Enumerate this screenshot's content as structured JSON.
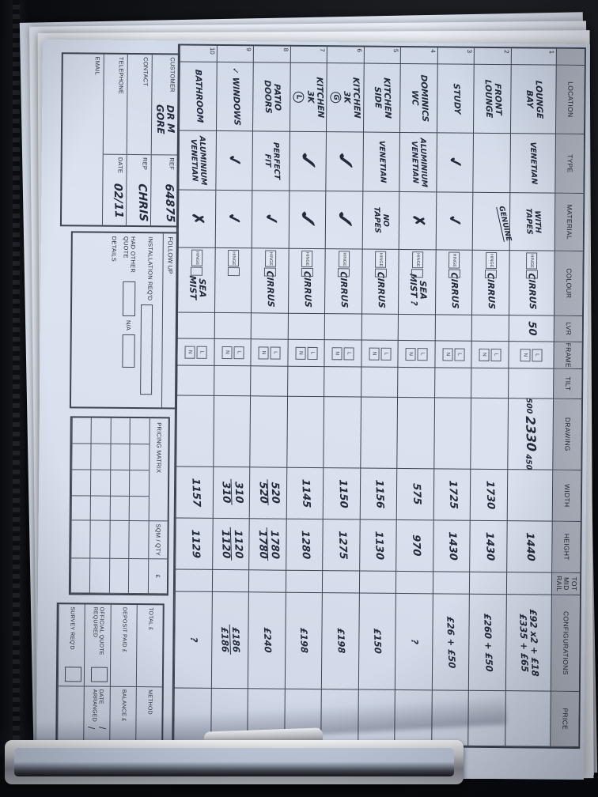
{
  "form": {
    "table": {
      "headers": [
        "LOCATION",
        "TYPE",
        "MATERIAL",
        "COLOUR",
        "LVR",
        "FRAME",
        "TILT",
        "DRAWING",
        "WIDTH",
        "HEIGHT",
        "TOT\nMID RAIL",
        "CONFIGURATIONS",
        "PRICE"
      ],
      "hinge_label": "HINGE",
      "frame_options": [
        "L",
        "N"
      ],
      "rows": [
        {
          "num": "1",
          "location": "LOUNGE\nBAY",
          "loc_prefix": "",
          "loc_circle": "",
          "type": "VENETIAN",
          "material": "WITH\nTAPES",
          "material_note": "GENUINE",
          "colour": "CIRRUS",
          "lvr": "50",
          "tilt": "",
          "drawing": [
            "500",
            "2330",
            "450"
          ],
          "width": [],
          "height": [
            "1440"
          ],
          "tot": "",
          "config": [
            "£92 x2 + £18",
            "£335 + £65"
          ],
          "price": ""
        },
        {
          "num": "2",
          "location": "FRONT\nLOUNGE",
          "loc_prefix": "",
          "loc_circle": "",
          "type": "",
          "material": "",
          "material_note": "",
          "colour": "CIRRUS",
          "lvr": "",
          "tilt": "",
          "drawing": [],
          "width": [
            "1730"
          ],
          "height": [
            "1430"
          ],
          "tot": "",
          "config": [
            "£260 + £50"
          ],
          "price": ""
        },
        {
          "num": "3",
          "location": "STUDY",
          "loc_prefix": "",
          "loc_circle": "",
          "type": "✓",
          "material": "✓",
          "material_note": "",
          "colour": "CIRRUS",
          "lvr": "",
          "tilt": "",
          "drawing": [],
          "width": [
            "1725"
          ],
          "height": [
            "1430"
          ],
          "tot": "",
          "config": [
            "£26 + £50"
          ],
          "price": ""
        },
        {
          "num": "4",
          "location": "DOMINICS\nWC",
          "loc_prefix": "",
          "loc_circle": "",
          "type": "ALUMINIUM\nVENETIAN",
          "material": "✗",
          "material_note": "",
          "colour": "SEA\nMIST ?",
          "lvr": "",
          "tilt": "",
          "drawing": [],
          "width": [
            "575"
          ],
          "height": [
            "970"
          ],
          "tot": "",
          "config": [
            "?"
          ],
          "price": ""
        },
        {
          "num": "5",
          "location": "KITCHEN\nSIDE",
          "loc_prefix": "",
          "loc_circle": "",
          "type": "VENETIAN",
          "material": "NO\nTAPES",
          "material_note": "",
          "colour": "CIRRUS",
          "lvr": "",
          "tilt": "",
          "drawing": [],
          "width": [
            "1156"
          ],
          "height": [
            "1130"
          ],
          "tot": "",
          "config": [
            "£150"
          ],
          "price": ""
        },
        {
          "num": "6",
          "location": "KITCHEN\n3K",
          "loc_prefix": "",
          "loc_circle": "G",
          "type": "✓",
          "material": "✓",
          "material_note": "",
          "colour": "CIRRUS",
          "lvr": "",
          "tilt": "",
          "drawing": [],
          "width": [
            "1150"
          ],
          "height": [
            "1275"
          ],
          "tot": "",
          "config": [
            "£198"
          ],
          "price": ""
        },
        {
          "num": "7",
          "location": "KITCHEN\n3K",
          "loc_prefix": "",
          "loc_circle": "L",
          "type": "✓",
          "material": "✓",
          "material_note": "",
          "colour": "CIRRUS",
          "lvr": "",
          "tilt": "",
          "drawing": [],
          "width": [
            "1145"
          ],
          "height": [
            "1280"
          ],
          "tot": "",
          "config": [
            "£198"
          ],
          "price": ""
        },
        {
          "num": "8",
          "location": "PATIO\nDOORS",
          "loc_prefix": "",
          "loc_circle": "",
          "type": "PERFECT\nFIT",
          "material": "✓",
          "material_note": "",
          "colour": "CIRRUS",
          "lvr": "",
          "tilt": "",
          "drawing": [],
          "width": [
            "520",
            "520"
          ],
          "height": [
            "1780",
            "1780"
          ],
          "tot": "",
          "config": [
            "£240"
          ],
          "price": ""
        },
        {
          "num": "9",
          "location": "WINDOWS",
          "loc_prefix": "✓",
          "loc_circle": "",
          "type": "✓",
          "material": "✓",
          "material_note": "",
          "colour": "",
          "lvr": "",
          "tilt": "",
          "drawing": [],
          "width": [
            "310",
            "310"
          ],
          "height": [
            "1120",
            "1120"
          ],
          "tot": "",
          "config": [
            "£186",
            "£186"
          ],
          "price": ""
        },
        {
          "num": "10",
          "location": "BATHROOM",
          "loc_prefix": "",
          "loc_circle": "",
          "type": "ALUMINIUM\nVENETIAN",
          "material": "✗",
          "material_note": "",
          "colour": "SEA\nMIST",
          "lvr": "",
          "tilt": "",
          "drawing": [],
          "width": [
            "1157"
          ],
          "height": [
            "1129"
          ],
          "tot": "",
          "config": [
            "?"
          ],
          "price": ""
        }
      ]
    },
    "footer": {
      "customer": {
        "rows": [
          {
            "label": "CUSTOMER",
            "value": "DR M GORE",
            "label2": "REF",
            "value2": "64875"
          },
          {
            "label": "CONTACT",
            "value": "",
            "label2": "REP",
            "value2": "CHRIS"
          },
          {
            "label": "TELEPHONE",
            "value": "",
            "label2": "DATE",
            "value2": "02/11"
          },
          {
            "label": "EMAIL",
            "value": "",
            "label2": "",
            "value2": ""
          }
        ]
      },
      "follow_up": {
        "title": "FOLLOW UP",
        "installation_label": "INSTALLATION REQ'D",
        "quote_label": "HAD OTHER QUOTE",
        "na_label": "N/A",
        "details_label": "DETAILS"
      },
      "pricing_matrix": {
        "title": "PRICING MATRIX",
        "qty_label": "SQM / QTY",
        "currency_label": "£"
      },
      "totals": {
        "rows": [
          {
            "left": "TOTAL £",
            "left_checkbox": false,
            "right": "METHOD",
            "right_extra": ""
          },
          {
            "left": "DEPOSIT PAID £",
            "left_checkbox": false,
            "right": "BALANCE £",
            "right_extra": ""
          },
          {
            "left": "OFFICIAL QUOTE REQUIRED",
            "left_checkbox": true,
            "right": "DATE ARRANGED",
            "right_extra": "/  /"
          },
          {
            "left": "SURVEY REQ'D",
            "left_checkbox": true,
            "right": "",
            "right_extra": ""
          }
        ]
      }
    }
  },
  "colors": {
    "paper": "#d8e0ee",
    "ink": "#222a3c",
    "grid_line": "#3e4450",
    "header_fill": "#b3b8c3",
    "case": "#0b0c0f",
    "clip_metal": "#c6c9ce"
  }
}
